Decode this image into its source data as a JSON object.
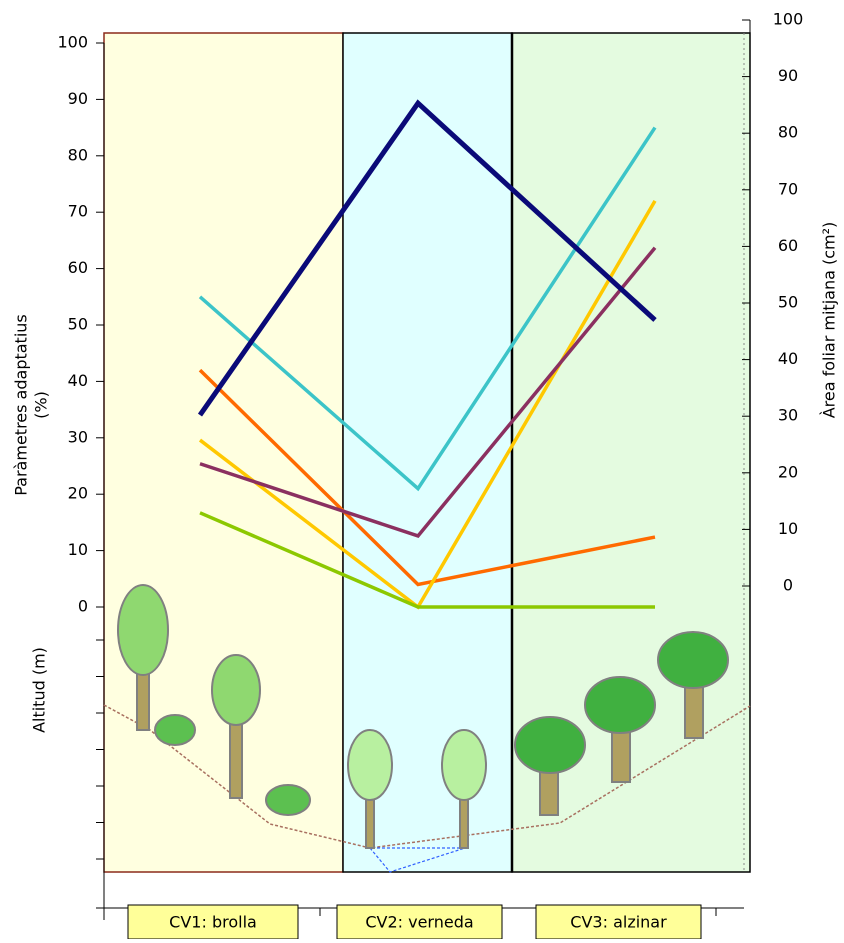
{
  "chart_data": {
    "type": "line",
    "ylabel": [
      "Paràmetres adaptatius",
      "(%)"
    ],
    "y2label": "Àrea foliar mitjana (cm²)",
    "altitude_label": "Altitud (m)",
    "categories": [
      "CV1: brolla",
      "CV2: verneda",
      "CV3: alzinar"
    ],
    "ylim": [
      0,
      100
    ],
    "yticks": [
      0,
      10,
      20,
      30,
      40,
      50,
      60,
      70,
      80,
      90,
      100
    ],
    "y2lim": [
      0,
      100
    ],
    "y2ticks": [
      0,
      10,
      20,
      30,
      40,
      50,
      60,
      70,
      80,
      90,
      100
    ],
    "series": [
      {
        "color": "#3cc4c8",
        "values": [
          55,
          21,
          85
        ]
      },
      {
        "color": "#ff6a00",
        "values": [
          42,
          4,
          12.4
        ]
      },
      {
        "color": "#ffc800",
        "values": [
          29.6,
          0,
          72
        ]
      },
      {
        "color": "#8b3060",
        "values": [
          25.4,
          12.6,
          63.7
        ]
      },
      {
        "color": "#8cc800",
        "values": [
          16.7,
          0,
          0
        ]
      },
      {
        "color": "#0a0a78",
        "axis": "y2",
        "values": [
          30.2,
          85.3,
          47
        ]
      }
    ]
  }
}
